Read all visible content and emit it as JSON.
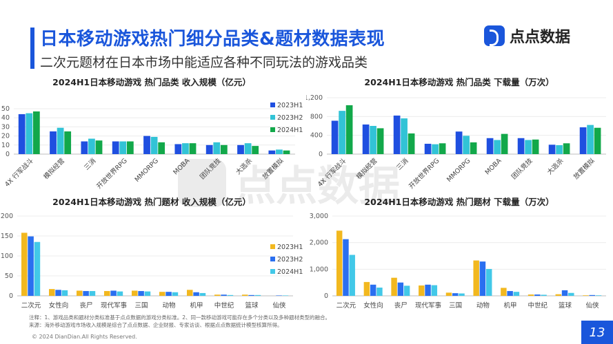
{
  "header": {
    "title": "日本移动游戏热门细分品类&题材数据表现",
    "subtitle": "二次元题材在日本市场中能适应各种不同玩法的游戏品类",
    "logo_text": "点点数据"
  },
  "watermark": "点点数据",
  "colors": {
    "accent": "#1a56db",
    "s2023H1": "#1f4fe0",
    "s2023H2": "#32c3d6",
    "s2024H1": "#12a84a",
    "t2023H1": "#f2b81f",
    "t2023H2": "#2a6ff0",
    "t2024H1": "#42c8e8"
  },
  "chart_data": [
    {
      "type": "bar",
      "title": "2024H1日本移动游戏 热门品类 收入规模（亿元）",
      "categories": [
        "4X 行军战斗",
        "模拟经营",
        "三消",
        "开放世界RPG",
        "MMORPG",
        "MOBA",
        "团队竞技",
        "大逃杀",
        "放置模拟"
      ],
      "series": [
        {
          "name": "2023H1",
          "values": [
            44,
            25,
            14,
            14,
            20,
            11,
            10,
            10,
            4
          ]
        },
        {
          "name": "2023H2",
          "values": [
            45,
            29,
            17,
            14,
            19,
            12,
            13,
            12,
            5
          ]
        },
        {
          "name": "2024H1",
          "values": [
            47,
            25,
            15,
            14,
            13,
            12,
            10,
            9,
            4
          ]
        }
      ],
      "yticks": [
        "0",
        "10",
        "20",
        "30",
        "40",
        "50"
      ],
      "ylim": [
        0,
        50
      ],
      "legend": "right"
    },
    {
      "type": "bar",
      "title": "2024H1日本移动游戏 热门品类 下载量（万次）",
      "categories": [
        "4X 行军战斗",
        "模拟经营",
        "三消",
        "开放世界RPG",
        "MMORPG",
        "MOBA",
        "团队竞技",
        "大逃杀",
        "放置模拟"
      ],
      "series": [
        {
          "name": "2023H1",
          "values": [
            710,
            630,
            820,
            220,
            480,
            340,
            340,
            200,
            570
          ]
        },
        {
          "name": "2023H2",
          "values": [
            920,
            600,
            760,
            210,
            390,
            300,
            300,
            190,
            620
          ]
        },
        {
          "name": "2024H1",
          "values": [
            1040,
            550,
            440,
            230,
            250,
            430,
            310,
            230,
            560
          ]
        }
      ],
      "yticks": [
        "0",
        "400",
        "800",
        "1,200"
      ],
      "ylim": [
        0,
        1200
      ],
      "legend": "none"
    },
    {
      "type": "bar",
      "title": "2024H1日本移动游戏 热门题材 收入规模（亿元）",
      "categories": [
        "二次元",
        "女性向",
        "丧尸",
        "现代军事",
        "三国",
        "动物",
        "机甲",
        "中世纪",
        "篮球",
        "仙侠"
      ],
      "series": [
        {
          "name": "2023H1",
          "values": [
            158,
            17,
            13,
            12,
            13,
            10,
            15,
            3,
            3,
            0
          ]
        },
        {
          "name": "2023H2",
          "values": [
            149,
            15,
            12,
            13,
            12,
            10,
            9,
            3,
            2,
            1
          ]
        },
        {
          "name": "2024H1",
          "values": [
            135,
            14,
            12,
            11,
            11,
            9,
            7,
            2,
            2,
            1
          ]
        }
      ],
      "yticks": [
        "0",
        "50",
        "100",
        "150",
        "200"
      ],
      "ylim": [
        0,
        200
      ],
      "legend": "right"
    },
    {
      "type": "bar",
      "title": "2024H1日本移动游戏 热门题材 下载量（万次）",
      "categories": [
        "二次元",
        "女性向",
        "丧尸",
        "现代军事",
        "三国",
        "动物",
        "机甲",
        "中世纪",
        "篮球",
        "仙侠"
      ],
      "series": [
        {
          "name": "2023H1",
          "values": [
            2450,
            520,
            680,
            390,
            120,
            1330,
            300,
            50,
            60,
            20
          ]
        },
        {
          "name": "2023H2",
          "values": [
            2130,
            420,
            500,
            420,
            100,
            1290,
            180,
            50,
            210,
            30
          ]
        },
        {
          "name": "2024H1",
          "values": [
            1540,
            310,
            380,
            400,
            90,
            1010,
            150,
            40,
            110,
            20
          ]
        }
      ],
      "yticks": [
        "0",
        "1,000",
        "2,000",
        "3,000"
      ],
      "ylim": [
        0,
        3000
      ],
      "legend": "none"
    }
  ],
  "notes": [
    "注释：1、游戏品类和题材分类标准基于点点数据的游戏分类标准。2、同一款移动游戏可能存在多个分类以及多种题材类型的融合。",
    "来源：海外移动游戏市场收入规模是综合了点点数据、企业财报、专家访谈、根据点点数据统计模型核算所得。"
  ],
  "copyright": "© 2024 DianDian.All Rights Reserved.",
  "page_number": "13"
}
